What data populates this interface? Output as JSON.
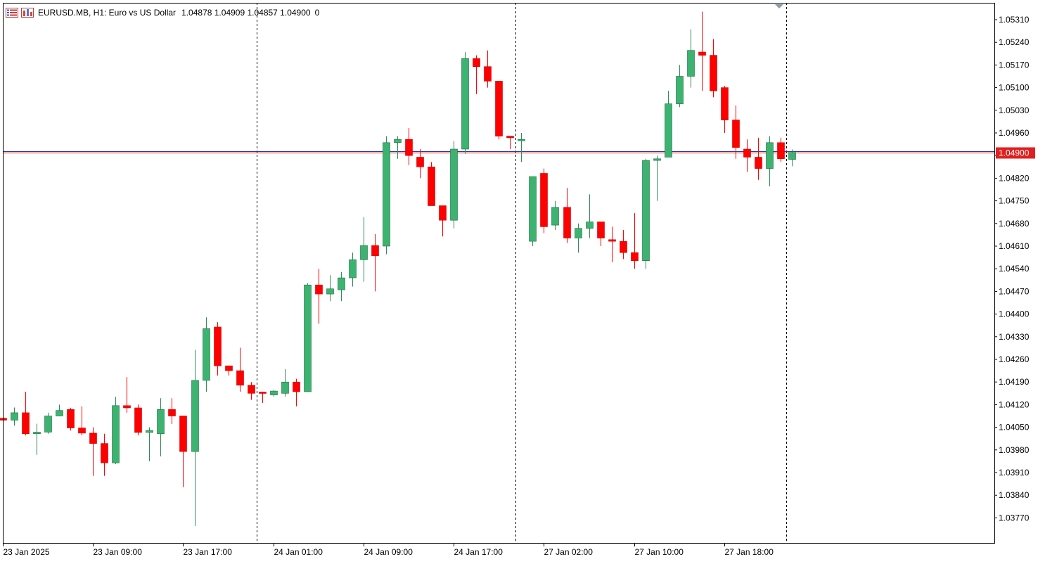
{
  "header": {
    "symbol": "EURUSD.MB, H1:  Euro vs US Dollar",
    "ohlc": "1.04878 1.04909 1.04857 1.04900",
    "volume": "0",
    "icons": [
      "chart-list-icon",
      "chart-bars-icon"
    ]
  },
  "colors": {
    "bull": "#3cb371",
    "bear": "#ff0000",
    "bid_line": "#3030c0",
    "ask_line": "#cc2020",
    "price_tag": "#e02020",
    "frame": "#000000",
    "separator": "#000000"
  },
  "price_axis": {
    "labels": [
      "1.05310",
      "1.05240",
      "1.05170",
      "1.05100",
      "1.05030",
      "1.04960",
      "1.04890",
      "1.04820",
      "1.04750",
      "1.04680",
      "1.04610",
      "1.04540",
      "1.04470",
      "1.04400",
      "1.04330",
      "1.04260",
      "1.04190",
      "1.04120",
      "1.04050",
      "1.03980",
      "1.03910",
      "1.03840",
      "1.03770"
    ],
    "current_price": "1.04900"
  },
  "time_axis": {
    "labels": [
      "23 Jan 2025",
      "23 Jan 09:00",
      "23 Jan 17:00",
      "24 Jan 01:00",
      "24 Jan 09:00",
      "24 Jan 17:00",
      "27 Jan 02:00",
      "27 Jan 10:00",
      "27 Jan 18:00"
    ]
  },
  "chart_data": {
    "type": "candlestick",
    "symbol": "EURUSD.MB",
    "timeframe": "H1",
    "ylim": [
      1.0373,
      1.0536
    ],
    "current_price": 1.049,
    "day_separators_after_index": [
      22,
      45,
      69
    ],
    "candles": [
      {
        "o": 1.04078,
        "h": 1.04078,
        "l": 1.04072,
        "c": 1.04072
      },
      {
        "o": 1.04072,
        "h": 1.04111,
        "l": 1.04055,
        "c": 1.04095
      },
      {
        "o": 1.04095,
        "h": 1.0416,
        "l": 1.04025,
        "c": 1.0403
      },
      {
        "o": 1.0403,
        "h": 1.04061,
        "l": 1.03965,
        "c": 1.04035
      },
      {
        "o": 1.04035,
        "h": 1.04095,
        "l": 1.0403,
        "c": 1.04085
      },
      {
        "o": 1.04085,
        "h": 1.0412,
        "l": 1.0409,
        "c": 1.04102
      },
      {
        "o": 1.04105,
        "h": 1.0411,
        "l": 1.0404,
        "c": 1.04048
      },
      {
        "o": 1.04048,
        "h": 1.04115,
        "l": 1.04025,
        "c": 1.04032
      },
      {
        "o": 1.04032,
        "h": 1.0405,
        "l": 1.039,
        "c": 1.04
      },
      {
        "o": 1.04,
        "h": 1.0403,
        "l": 1.039,
        "c": 1.0394
      },
      {
        "o": 1.0394,
        "h": 1.04144,
        "l": 1.03936,
        "c": 1.04117
      },
      {
        "o": 1.04117,
        "h": 1.04205,
        "l": 1.04095,
        "c": 1.0411
      },
      {
        "o": 1.0411,
        "h": 1.0412,
        "l": 1.04025,
        "c": 1.04034
      },
      {
        "o": 1.04034,
        "h": 1.0405,
        "l": 1.03945,
        "c": 1.0404
      },
      {
        "o": 1.0403,
        "h": 1.0414,
        "l": 1.0396,
        "c": 1.04105
      },
      {
        "o": 1.04105,
        "h": 1.0414,
        "l": 1.0406,
        "c": 1.04085
      },
      {
        "o": 1.04085,
        "h": 1.04085,
        "l": 1.03865,
        "c": 1.03975
      },
      {
        "o": 1.03975,
        "h": 1.04289,
        "l": 1.03745,
        "c": 1.04195
      },
      {
        "o": 1.04195,
        "h": 1.0439,
        "l": 1.0416,
        "c": 1.04355
      },
      {
        "o": 1.0436,
        "h": 1.04375,
        "l": 1.0421,
        "c": 1.0424
      },
      {
        "o": 1.0424,
        "h": 1.0424,
        "l": 1.0421,
        "c": 1.04225
      },
      {
        "o": 1.04225,
        "h": 1.04296,
        "l": 1.0416,
        "c": 1.0418
      },
      {
        "o": 1.0418,
        "h": 1.0419,
        "l": 1.04135,
        "c": 1.04155
      },
      {
        "o": 1.04159,
        "h": 1.0416,
        "l": 1.04125,
        "c": 1.04155
      },
      {
        "o": 1.0415,
        "h": 1.04165,
        "l": 1.04145,
        "c": 1.04162
      },
      {
        "o": 1.04155,
        "h": 1.0423,
        "l": 1.04145,
        "c": 1.0419
      },
      {
        "o": 1.0419,
        "h": 1.042,
        "l": 1.04115,
        "c": 1.0416
      },
      {
        "o": 1.0416,
        "h": 1.04495,
        "l": 1.0416,
        "c": 1.0449
      },
      {
        "o": 1.0449,
        "h": 1.0454,
        "l": 1.0437,
        "c": 1.04462
      },
      {
        "o": 1.04462,
        "h": 1.0452,
        "l": 1.0444,
        "c": 1.04478
      },
      {
        "o": 1.04475,
        "h": 1.0453,
        "l": 1.0444,
        "c": 1.04512
      },
      {
        "o": 1.04512,
        "h": 1.0459,
        "l": 1.04485,
        "c": 1.04568
      },
      {
        "o": 1.04568,
        "h": 1.047,
        "l": 1.045,
        "c": 1.04612
      },
      {
        "o": 1.04612,
        "h": 1.04647,
        "l": 1.0447,
        "c": 1.0458
      },
      {
        "o": 1.0461,
        "h": 1.0495,
        "l": 1.04585,
        "c": 1.0493
      },
      {
        "o": 1.0493,
        "h": 1.0495,
        "l": 1.0488,
        "c": 1.0494
      },
      {
        "o": 1.0494,
        "h": 1.04975,
        "l": 1.0486,
        "c": 1.0489
      },
      {
        "o": 1.04885,
        "h": 1.0491,
        "l": 1.0482,
        "c": 1.04855
      },
      {
        "o": 1.04855,
        "h": 1.0487,
        "l": 1.0474,
        "c": 1.04735
      },
      {
        "o": 1.04735,
        "h": 1.04735,
        "l": 1.0464,
        "c": 1.0469
      },
      {
        "o": 1.0469,
        "h": 1.04935,
        "l": 1.04665,
        "c": 1.0491
      },
      {
        "o": 1.0491,
        "h": 1.0521,
        "l": 1.04895,
        "c": 1.0519
      },
      {
        "o": 1.0519,
        "h": 1.052,
        "l": 1.0508,
        "c": 1.05165
      },
      {
        "o": 1.05165,
        "h": 1.05215,
        "l": 1.051,
        "c": 1.0512
      },
      {
        "o": 1.0512,
        "h": 1.0512,
        "l": 1.0494,
        "c": 1.0495
      },
      {
        "o": 1.0495,
        "h": 1.0495,
        "l": 1.0491,
        "c": 1.04945
      },
      {
        "o": 1.0494,
        "h": 1.0496,
        "l": 1.0487,
        "c": 1.0494
      },
      {
        "o": 1.04625,
        "h": 1.04825,
        "l": 1.0461,
        "c": 1.04825
      },
      {
        "o": 1.04835,
        "h": 1.0485,
        "l": 1.0465,
        "c": 1.0467
      },
      {
        "o": 1.04675,
        "h": 1.0475,
        "l": 1.0466,
        "c": 1.0473
      },
      {
        "o": 1.0473,
        "h": 1.0479,
        "l": 1.0462,
        "c": 1.04635
      },
      {
        "o": 1.04635,
        "h": 1.0468,
        "l": 1.0459,
        "c": 1.04665
      },
      {
        "o": 1.04665,
        "h": 1.0477,
        "l": 1.04635,
        "c": 1.04685
      },
      {
        "o": 1.04685,
        "h": 1.04685,
        "l": 1.0461,
        "c": 1.04635
      },
      {
        "o": 1.0463,
        "h": 1.0467,
        "l": 1.0456,
        "c": 1.04625
      },
      {
        "o": 1.04625,
        "h": 1.0466,
        "l": 1.0457,
        "c": 1.0459
      },
      {
        "o": 1.0459,
        "h": 1.04712,
        "l": 1.0454,
        "c": 1.04565
      },
      {
        "o": 1.04565,
        "h": 1.0488,
        "l": 1.0454,
        "c": 1.04875
      },
      {
        "o": 1.04875,
        "h": 1.0489,
        "l": 1.0475,
        "c": 1.0488
      },
      {
        "o": 1.04885,
        "h": 1.0509,
        "l": 1.04885,
        "c": 1.0505
      },
      {
        "o": 1.0505,
        "h": 1.0517,
        "l": 1.0504,
        "c": 1.05135
      },
      {
        "o": 1.05135,
        "h": 1.0528,
        "l": 1.051,
        "c": 1.05215
      },
      {
        "o": 1.0521,
        "h": 1.05335,
        "l": 1.0509,
        "c": 1.052
      },
      {
        "o": 1.052,
        "h": 1.0525,
        "l": 1.0507,
        "c": 1.0509
      },
      {
        "o": 1.051,
        "h": 1.05105,
        "l": 1.0496,
        "c": 1.05
      },
      {
        "o": 1.05,
        "h": 1.05045,
        "l": 1.0488,
        "c": 1.04915
      },
      {
        "o": 1.0491,
        "h": 1.0494,
        "l": 1.0484,
        "c": 1.04885
      },
      {
        "o": 1.04885,
        "h": 1.04945,
        "l": 1.04815,
        "c": 1.0485
      },
      {
        "o": 1.0485,
        "h": 1.0495,
        "l": 1.04795,
        "c": 1.0493
      },
      {
        "o": 1.0493,
        "h": 1.04945,
        "l": 1.0487,
        "c": 1.0488
      },
      {
        "o": 1.04878,
        "h": 1.04909,
        "l": 1.04857,
        "c": 1.049
      }
    ]
  }
}
